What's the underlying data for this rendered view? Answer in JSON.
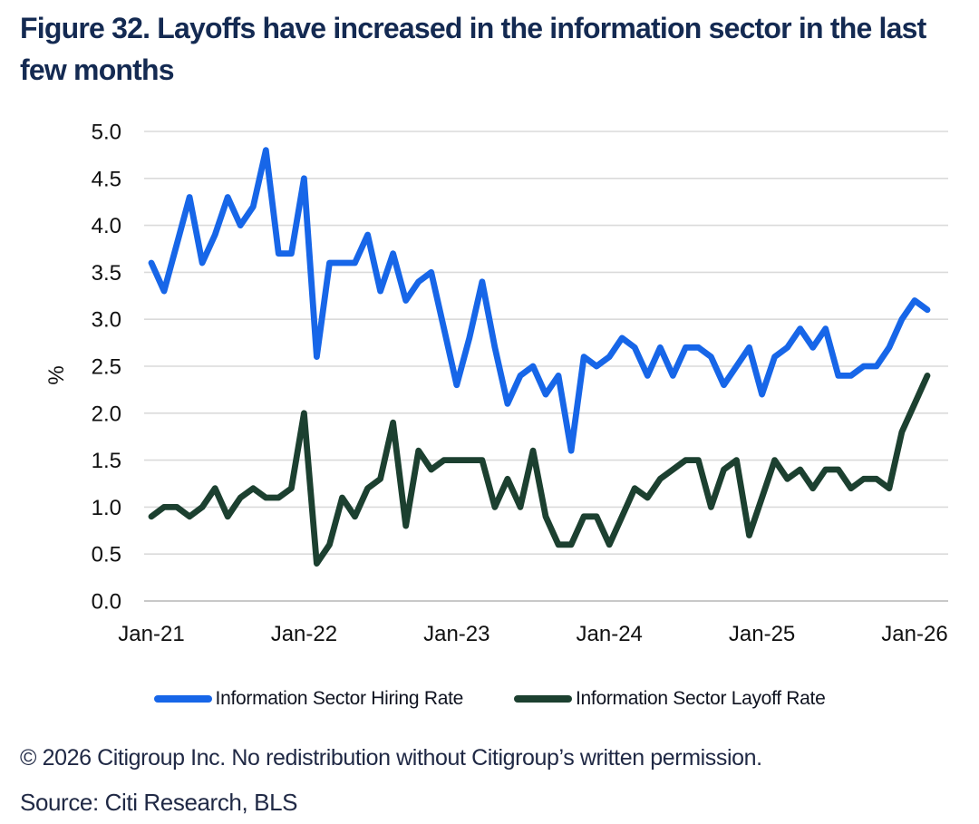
{
  "figure": {
    "title": "Figure 32. Layoffs have increased in the information sector in the last few months"
  },
  "chart_data": {
    "type": "line",
    "title": "Figure 32. Layoffs have increased in the information sector in the last few months",
    "xlabel": "",
    "ylabel": "%",
    "ylim": [
      0.0,
      5.0
    ],
    "ytick_step": 0.5,
    "grid": "horizontal",
    "legend_position": "bottom",
    "x": [
      "Jan-21",
      "Feb-21",
      "Mar-21",
      "Apr-21",
      "May-21",
      "Jun-21",
      "Jul-21",
      "Aug-21",
      "Sep-21",
      "Oct-21",
      "Nov-21",
      "Dec-21",
      "Jan-22",
      "Feb-22",
      "Mar-22",
      "Apr-22",
      "May-22",
      "Jun-22",
      "Jul-22",
      "Aug-22",
      "Sep-22",
      "Oct-22",
      "Nov-22",
      "Dec-22",
      "Jan-23",
      "Feb-23",
      "Mar-23",
      "Apr-23",
      "May-23",
      "Jun-23",
      "Jul-23",
      "Aug-23",
      "Sep-23",
      "Oct-23",
      "Nov-23",
      "Dec-23",
      "Jan-24",
      "Feb-24",
      "Mar-24",
      "Apr-24",
      "May-24",
      "Jun-24",
      "Jul-24",
      "Aug-24",
      "Sep-24",
      "Oct-24",
      "Nov-24",
      "Dec-24",
      "Jan-25",
      "Feb-25",
      "Mar-25",
      "Apr-25",
      "May-25",
      "Jun-25",
      "Jul-25",
      "Aug-25",
      "Sep-25",
      "Oct-25",
      "Nov-25",
      "Dec-25",
      "Jan-26",
      "Feb-26"
    ],
    "xticks": [
      "Jan-21",
      "Jan-22",
      "Jan-23",
      "Jan-24",
      "Jan-25",
      "Jan-26"
    ],
    "xtick_indices": [
      0,
      12,
      24,
      36,
      48,
      60
    ],
    "series": [
      {
        "name": "Information Sector Hiring Rate",
        "color": "#1766e8",
        "values": [
          3.6,
          3.3,
          3.8,
          4.3,
          3.6,
          3.9,
          4.3,
          4.0,
          4.2,
          4.8,
          3.7,
          3.7,
          4.5,
          2.6,
          3.6,
          3.6,
          3.6,
          3.9,
          3.3,
          3.7,
          3.2,
          3.4,
          3.5,
          2.9,
          2.3,
          2.8,
          3.4,
          2.7,
          2.1,
          2.4,
          2.5,
          2.2,
          2.4,
          1.6,
          2.6,
          2.5,
          2.6,
          2.8,
          2.7,
          2.4,
          2.7,
          2.4,
          2.7,
          2.7,
          2.6,
          2.3,
          2.5,
          2.7,
          2.2,
          2.6,
          2.7,
          2.9,
          2.7,
          2.9,
          2.4,
          2.4,
          2.5,
          2.5,
          2.7,
          3.0,
          3.2,
          3.1
        ]
      },
      {
        "name": "Information Sector Layoff Rate",
        "color": "#1c4030",
        "values": [
          0.9,
          1.0,
          1.0,
          0.9,
          1.0,
          1.2,
          0.9,
          1.1,
          1.2,
          1.1,
          1.1,
          1.2,
          2.0,
          0.4,
          0.6,
          1.1,
          0.9,
          1.2,
          1.3,
          1.9,
          0.8,
          1.6,
          1.4,
          1.5,
          1.5,
          1.5,
          1.5,
          1.0,
          1.3,
          1.0,
          1.6,
          0.9,
          0.6,
          0.6,
          0.9,
          0.9,
          0.6,
          0.9,
          1.2,
          1.1,
          1.3,
          1.4,
          1.5,
          1.5,
          1.0,
          1.4,
          1.5,
          0.7,
          1.1,
          1.5,
          1.3,
          1.4,
          1.2,
          1.4,
          1.4,
          1.2,
          1.3,
          1.3,
          1.2,
          1.8,
          2.1,
          2.4
        ]
      }
    ]
  },
  "footer": {
    "copyright": "© 2026 Citigroup Inc. No redistribution without Citigroup’s written permission.",
    "source": "Source: Citi Research, BLS"
  },
  "colors": {
    "title_text": "#142a52",
    "grid": "#dadada",
    "baseline": "#c8c8c8",
    "axis_text": "#101010",
    "footer_text": "#202945"
  }
}
